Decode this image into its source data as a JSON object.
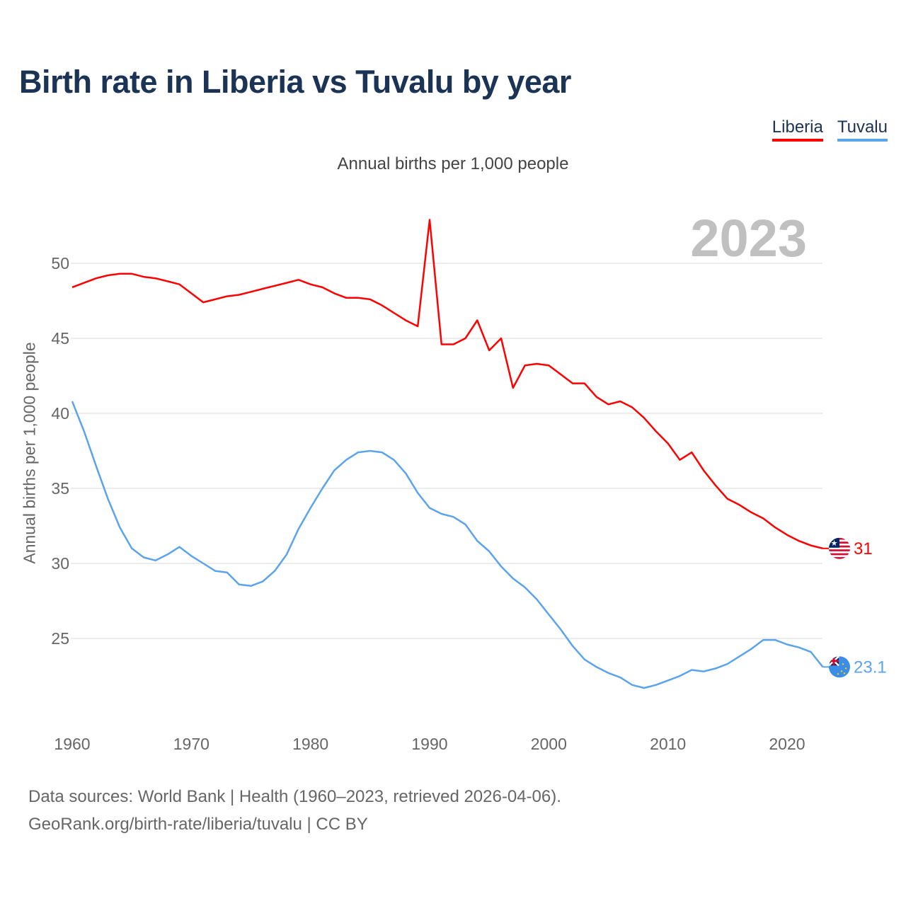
{
  "title": "Birth rate in Liberia vs Tuvalu by year",
  "legend": [
    {
      "label": "Liberia",
      "color": "#ff0000"
    },
    {
      "label": "Tuvalu",
      "color": "#5ba4ec"
    }
  ],
  "source_line1": "Data sources: World Bank | Health (1960–2023, retrieved 2026-04-06).",
  "source_line2": "GeoRank.org/birth-rate/liberia/tuvalu | CC BY",
  "chart_data": {
    "type": "line",
    "title": "Birth rate in Liberia vs Tuvalu by year",
    "subtitle": "Annual births per 1,000 people",
    "xlabel": "",
    "ylabel": "Annual births per 1,000 people",
    "current_year_label": "2023",
    "xlim": [
      1960,
      2023
    ],
    "ylim": [
      20,
      54
    ],
    "xticks": [
      1960,
      1970,
      1980,
      1990,
      2000,
      2010,
      2020
    ],
    "yticks": [
      25,
      30,
      35,
      40,
      45,
      50
    ],
    "grid": true,
    "legend_position": "top-right",
    "x_start": 1960,
    "series": [
      {
        "name": "Liberia",
        "color": "#ff0000",
        "end_label": "31",
        "flag": "liberia-flag",
        "values": [
          48.4,
          48.7,
          49.0,
          49.2,
          49.3,
          49.3,
          49.1,
          49.0,
          48.8,
          48.6,
          48.0,
          47.4,
          47.6,
          47.8,
          47.9,
          48.1,
          48.3,
          48.5,
          48.7,
          48.9,
          48.6,
          48.4,
          48.0,
          47.7,
          47.7,
          47.6,
          47.2,
          46.7,
          46.2,
          45.8,
          52.9,
          44.6,
          44.6,
          45.0,
          46.2,
          44.2,
          45.0,
          41.7,
          43.2,
          43.3,
          43.2,
          42.6,
          42.0,
          42.0,
          41.1,
          40.6,
          40.8,
          40.4,
          39.7,
          38.8,
          38.0,
          36.9,
          37.4,
          36.2,
          35.2,
          34.3,
          33.9,
          33.4,
          33.0,
          32.4,
          31.9,
          31.5,
          31.2,
          31.0
        ]
      },
      {
        "name": "Tuvalu",
        "color": "#5ba4ec",
        "end_label": "23.1",
        "flag": "tuvalu-flag",
        "values": [
          40.8,
          38.8,
          36.5,
          34.3,
          32.4,
          31.0,
          30.4,
          30.2,
          30.6,
          31.1,
          30.5,
          30.0,
          29.5,
          29.4,
          28.6,
          28.5,
          28.8,
          29.5,
          30.6,
          32.3,
          33.7,
          35.0,
          36.2,
          36.9,
          37.4,
          37.5,
          37.4,
          36.9,
          36.0,
          34.7,
          33.7,
          33.3,
          33.1,
          32.6,
          31.5,
          30.8,
          29.8,
          29.0,
          28.4,
          27.6,
          26.6,
          25.6,
          24.5,
          23.6,
          23.1,
          22.7,
          22.4,
          21.9,
          21.7,
          21.9,
          22.2,
          22.5,
          22.9,
          22.8,
          23.0,
          23.3,
          23.8,
          24.3,
          24.9,
          24.9,
          24.6,
          24.4,
          24.1,
          23.1
        ]
      }
    ]
  }
}
